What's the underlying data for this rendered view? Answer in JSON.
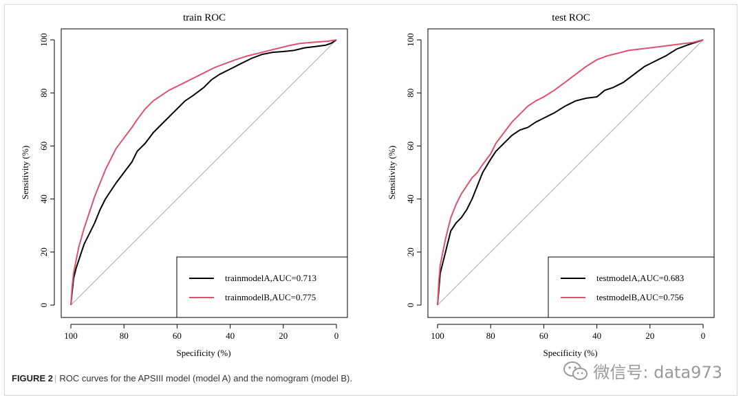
{
  "caption": {
    "lead": "FIGURE 2",
    "text": "ROC curves for the APSIII model (model A) and the nomogram (model B)."
  },
  "watermark": {
    "text": "微信号: data973"
  },
  "chart_data": [
    {
      "type": "line",
      "title": "train ROC",
      "xlabel": "Specificity (%)",
      "ylabel": "Sensitivity (%)",
      "xlim": [
        100,
        0
      ],
      "ylim": [
        0,
        100
      ],
      "xticks": [
        100,
        80,
        60,
        40,
        20,
        0
      ],
      "yticks": [
        0,
        20,
        40,
        60,
        80,
        100
      ],
      "x_reversed": true,
      "legend_position": "bottom-right",
      "diagonal_reference": true,
      "series": [
        {
          "name": "trainmodelA,AUC=0.713",
          "color": "#000000",
          "x": [
            100,
            99.5,
            99,
            98,
            97,
            96,
            95,
            93,
            91,
            89,
            87,
            85,
            83,
            80,
            77,
            75,
            72,
            69,
            66,
            63,
            60,
            57,
            54,
            50,
            47,
            44,
            40,
            36,
            32,
            28,
            24,
            20,
            16,
            12,
            8,
            4,
            2,
            0
          ],
          "y": [
            0,
            5,
            10,
            14,
            17,
            20,
            23,
            27,
            31,
            36,
            40,
            43,
            46,
            50,
            54,
            58,
            61,
            65,
            68,
            71,
            74,
            77,
            79,
            82,
            85,
            87,
            89,
            91,
            93,
            94.5,
            95.3,
            95.6,
            96,
            97,
            97.5,
            98,
            98.7,
            100
          ]
        },
        {
          "name": "trainmodelB,AUC=0.775",
          "color": "#e0506a",
          "x": [
            100,
            99.5,
            99,
            98,
            97,
            95,
            93,
            91,
            89,
            87,
            85,
            83,
            80,
            77,
            75,
            72,
            69,
            66,
            63,
            60,
            57,
            54,
            50,
            46,
            42,
            38,
            34,
            30,
            26,
            22,
            18,
            14,
            10,
            6,
            3,
            0
          ],
          "y": [
            0,
            7,
            12,
            17,
            22,
            29,
            35,
            41,
            46,
            51,
            55,
            59,
            63,
            67,
            70,
            74,
            77,
            79,
            81,
            82.5,
            84,
            85.5,
            87.5,
            89.5,
            91,
            92.5,
            93.8,
            94.8,
            95.8,
            96.8,
            97.8,
            98.6,
            99,
            99.3,
            99.5,
            100
          ]
        }
      ]
    },
    {
      "type": "line",
      "title": "test ROC",
      "xlabel": "Specificity (%)",
      "ylabel": "Sensitivity (%)",
      "xlim": [
        100,
        0
      ],
      "ylim": [
        0,
        100
      ],
      "xticks": [
        100,
        80,
        60,
        40,
        20,
        0
      ],
      "yticks": [
        0,
        20,
        40,
        60,
        80,
        100
      ],
      "x_reversed": true,
      "legend_position": "bottom-right",
      "diagonal_reference": true,
      "series": [
        {
          "name": "testmodelA,AUC=0.683",
          "color": "#000000",
          "x": [
            100,
            99.5,
            99,
            98,
            97,
            96,
            95,
            93,
            91,
            89,
            87,
            85,
            83,
            80,
            78,
            75,
            72,
            69,
            66,
            63,
            60,
            56,
            52,
            48,
            44,
            40,
            37,
            34,
            30,
            26,
            22,
            18,
            14,
            10,
            6,
            3,
            0
          ],
          "y": [
            0,
            6,
            12,
            16,
            20,
            24,
            28,
            31,
            33,
            36,
            40,
            45,
            50,
            55,
            58,
            61,
            64,
            66,
            67,
            69,
            70.5,
            72.5,
            75,
            77,
            78,
            78.5,
            81,
            82,
            84,
            87,
            90,
            92,
            94,
            96.5,
            98,
            99,
            100
          ]
        },
        {
          "name": "testmodelB,AUC=0.756",
          "color": "#e0506a",
          "x": [
            100,
            99.5,
            99,
            98,
            97,
            96,
            95,
            93,
            91,
            89,
            87,
            85,
            83,
            80,
            78,
            75,
            72,
            69,
            66,
            63,
            60,
            56,
            52,
            48,
            44,
            40,
            36,
            32,
            28,
            24,
            20,
            16,
            12,
            8,
            4,
            0
          ],
          "y": [
            0,
            9,
            15,
            20,
            25,
            29,
            33,
            38,
            42,
            45,
            48,
            50,
            53,
            57,
            61,
            65,
            69,
            72,
            75,
            77,
            78.5,
            81,
            84,
            87,
            90,
            92.5,
            94,
            95,
            96,
            96.5,
            97,
            97.5,
            98,
            98.5,
            99,
            100
          ]
        }
      ]
    }
  ]
}
